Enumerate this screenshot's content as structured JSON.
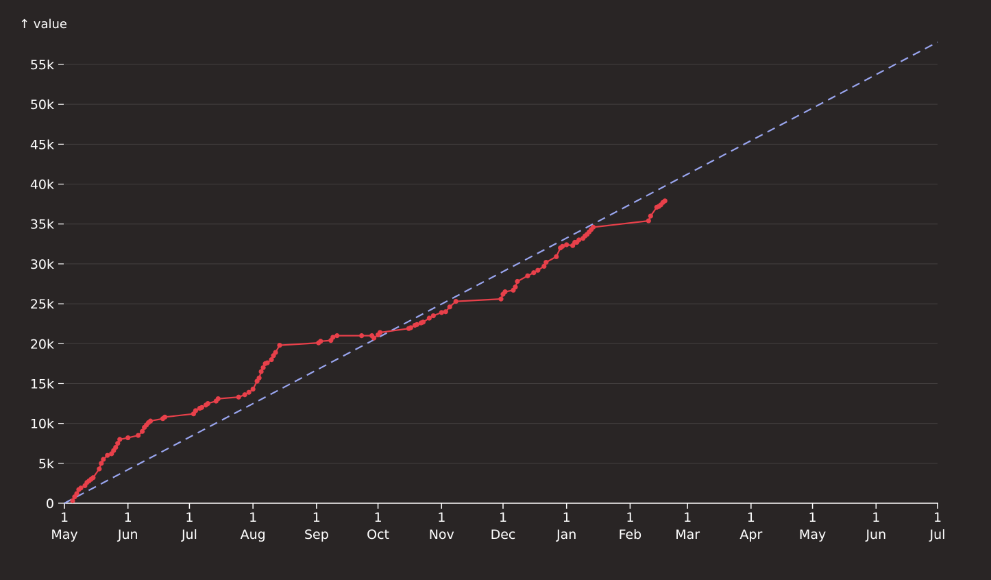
{
  "chart_data": {
    "type": "line",
    "ylabel": "↑ value",
    "xlim": [
      "2021-05-01",
      "2022-07-01"
    ],
    "ylim": [
      0,
      55000
    ],
    "grid": {
      "horizontal": true,
      "vertical": false
    },
    "colors": {
      "background": "#292525",
      "series": "#e8404a",
      "target": "#9aa6f0",
      "grid": "#444040",
      "axis": "#ffffff"
    },
    "y_ticks": [
      {
        "value": 0,
        "label": "0"
      },
      {
        "value": 5000,
        "label": "5k"
      },
      {
        "value": 10000,
        "label": "10k"
      },
      {
        "value": 15000,
        "label": "15k"
      },
      {
        "value": 20000,
        "label": "20k"
      },
      {
        "value": 25000,
        "label": "25k"
      },
      {
        "value": 30000,
        "label": "30k"
      },
      {
        "value": 35000,
        "label": "35k"
      },
      {
        "value": 40000,
        "label": "40k"
      },
      {
        "value": 45000,
        "label": "45k"
      },
      {
        "value": 50000,
        "label": "50k"
      },
      {
        "value": 55000,
        "label": "55k"
      }
    ],
    "x_ticks": [
      {
        "date": "2021-05-01",
        "day": "1",
        "month": "May"
      },
      {
        "date": "2021-06-01",
        "day": "1",
        "month": "Jun"
      },
      {
        "date": "2021-07-01",
        "day": "1",
        "month": "Jul"
      },
      {
        "date": "2021-08-01",
        "day": "1",
        "month": "Aug"
      },
      {
        "date": "2021-09-01",
        "day": "1",
        "month": "Sep"
      },
      {
        "date": "2021-10-01",
        "day": "1",
        "month": "Oct"
      },
      {
        "date": "2021-11-01",
        "day": "1",
        "month": "Nov"
      },
      {
        "date": "2021-12-01",
        "day": "1",
        "month": "Dec"
      },
      {
        "date": "2022-01-01",
        "day": "1",
        "month": "Jan"
      },
      {
        "date": "2022-02-01",
        "day": "1",
        "month": "Feb"
      },
      {
        "date": "2022-03-01",
        "day": "1",
        "month": "Mar"
      },
      {
        "date": "2022-04-01",
        "day": "1",
        "month": "Apr"
      },
      {
        "date": "2022-05-01",
        "day": "1",
        "month": "May"
      },
      {
        "date": "2022-06-01",
        "day": "1",
        "month": "Jun"
      },
      {
        "date": "2022-07-01",
        "day": "1",
        "month": "Jul"
      }
    ],
    "target_line": {
      "style": "dashed",
      "points": [
        [
          "2021-05-01",
          0
        ],
        [
          "2022-07-01",
          57800
        ]
      ]
    },
    "series": [
      {
        "points": [
          [
            "2021-05-05",
            300
          ],
          [
            "2021-05-06",
            800
          ],
          [
            "2021-05-07",
            1200
          ],
          [
            "2021-05-08",
            1700
          ],
          [
            "2021-05-09",
            1900
          ],
          [
            "2021-05-11",
            2200
          ],
          [
            "2021-05-12",
            2600
          ],
          [
            "2021-05-13",
            2800
          ],
          [
            "2021-05-14",
            3000
          ],
          [
            "2021-05-15",
            3200
          ],
          [
            "2021-05-18",
            4300
          ],
          [
            "2021-05-19",
            5000
          ],
          [
            "2021-05-20",
            5500
          ],
          [
            "2021-05-22",
            6000
          ],
          [
            "2021-05-24",
            6200
          ],
          [
            "2021-05-25",
            6600
          ],
          [
            "2021-05-26",
            7000
          ],
          [
            "2021-05-27",
            7500
          ],
          [
            "2021-05-28",
            8000
          ],
          [
            "2021-06-01",
            8200
          ],
          [
            "2021-06-06",
            8500
          ],
          [
            "2021-06-08",
            9000
          ],
          [
            "2021-06-09",
            9500
          ],
          [
            "2021-06-10",
            9800
          ],
          [
            "2021-06-11",
            10100
          ],
          [
            "2021-06-12",
            10300
          ],
          [
            "2021-06-18",
            10600
          ],
          [
            "2021-06-19",
            10800
          ],
          [
            "2021-07-03",
            11200
          ],
          [
            "2021-07-04",
            11600
          ],
          [
            "2021-07-06",
            11900
          ],
          [
            "2021-07-07",
            12000
          ],
          [
            "2021-07-09",
            12300
          ],
          [
            "2021-07-10",
            12500
          ],
          [
            "2021-07-14",
            12800
          ],
          [
            "2021-07-15",
            13100
          ],
          [
            "2021-07-25",
            13300
          ],
          [
            "2021-07-28",
            13600
          ],
          [
            "2021-07-30",
            13900
          ],
          [
            "2021-08-01",
            14300
          ],
          [
            "2021-08-03",
            15300
          ],
          [
            "2021-08-04",
            15700
          ],
          [
            "2021-08-05",
            16500
          ],
          [
            "2021-08-06",
            17000
          ],
          [
            "2021-08-07",
            17500
          ],
          [
            "2021-08-08",
            17600
          ],
          [
            "2021-08-10",
            18000
          ],
          [
            "2021-08-11",
            18500
          ],
          [
            "2021-08-12",
            18900
          ],
          [
            "2021-08-14",
            19800
          ],
          [
            "2021-09-02",
            20100
          ],
          [
            "2021-09-03",
            20300
          ],
          [
            "2021-09-08",
            20400
          ],
          [
            "2021-09-09",
            20800
          ],
          [
            "2021-09-11",
            21000
          ],
          [
            "2021-09-23",
            21000
          ],
          [
            "2021-09-28",
            21000
          ],
          [
            "2021-09-29",
            20700
          ],
          [
            "2021-10-01",
            21100
          ],
          [
            "2021-10-02",
            21400
          ],
          [
            "2021-10-16",
            21900
          ],
          [
            "2021-10-17",
            22000
          ],
          [
            "2021-10-19",
            22300
          ],
          [
            "2021-10-20",
            22400
          ],
          [
            "2021-10-22",
            22600
          ],
          [
            "2021-10-23",
            22700
          ],
          [
            "2021-10-26",
            23200
          ],
          [
            "2021-10-28",
            23500
          ],
          [
            "2021-11-01",
            23900
          ],
          [
            "2021-11-03",
            24000
          ],
          [
            "2021-11-05",
            24600
          ],
          [
            "2021-11-08",
            25300
          ],
          [
            "2021-11-30",
            25600
          ],
          [
            "2021-12-01",
            26200
          ],
          [
            "2021-12-02",
            26500
          ],
          [
            "2021-12-06",
            26700
          ],
          [
            "2021-12-07",
            27100
          ],
          [
            "2021-12-08",
            27800
          ],
          [
            "2021-12-13",
            28500
          ],
          [
            "2021-12-16",
            28900
          ],
          [
            "2021-12-18",
            29200
          ],
          [
            "2021-12-21",
            29700
          ],
          [
            "2021-12-22",
            30200
          ],
          [
            "2021-12-27",
            30900
          ],
          [
            "2021-12-29",
            32000
          ],
          [
            "2021-12-30",
            32200
          ],
          [
            "2022-01-01",
            32400
          ],
          [
            "2022-01-04",
            32300
          ],
          [
            "2022-01-05",
            32700
          ],
          [
            "2022-01-06",
            32700
          ],
          [
            "2022-01-07",
            33000
          ],
          [
            "2022-01-09",
            33200
          ],
          [
            "2022-01-10",
            33500
          ],
          [
            "2022-01-11",
            33700
          ],
          [
            "2022-01-12",
            34000
          ],
          [
            "2022-01-13",
            34300
          ],
          [
            "2022-01-14",
            34600
          ],
          [
            "2022-02-10",
            35400
          ],
          [
            "2022-02-11",
            36000
          ],
          [
            "2022-02-14",
            37100
          ],
          [
            "2022-02-15",
            37200
          ],
          [
            "2022-02-16",
            37400
          ],
          [
            "2022-02-17",
            37700
          ],
          [
            "2022-02-18",
            37900
          ]
        ]
      }
    ]
  }
}
